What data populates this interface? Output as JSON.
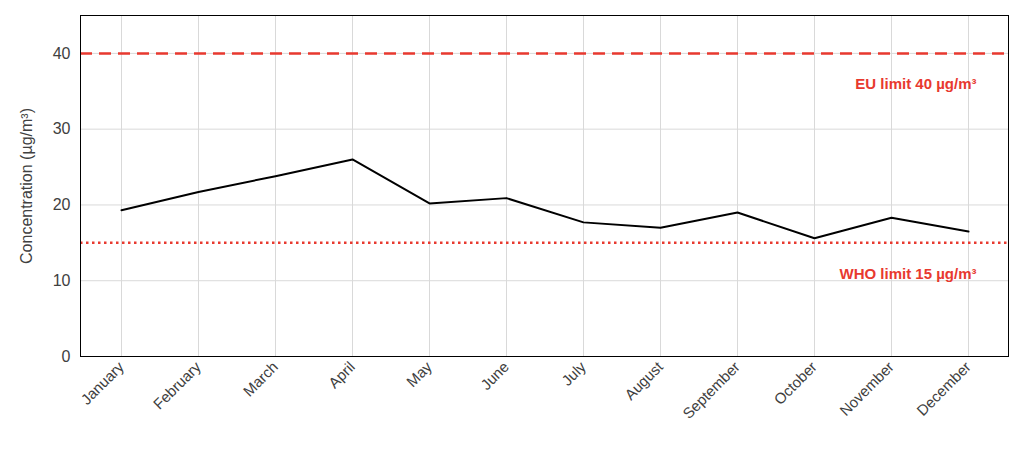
{
  "chart_data": {
    "type": "line",
    "y_label": "Concentration (µg/m³)",
    "categories": [
      "January",
      "February",
      "March",
      "April",
      "May",
      "June",
      "July",
      "August",
      "September",
      "October",
      "November",
      "December"
    ],
    "values": [
      19.3,
      21.7,
      23.8,
      26.0,
      20.2,
      20.9,
      17.7,
      17.0,
      19.0,
      15.6,
      18.3,
      16.5
    ],
    "color": "#000000",
    "ylim": [
      0,
      45
    ],
    "yticks": [
      0,
      10,
      20,
      30,
      40
    ],
    "grid": true,
    "reference_lines": [
      {
        "y": 40,
        "label": "EU limit 40 µg/m³",
        "line_style": "dashed",
        "color": "#e8392f"
      },
      {
        "y": 15,
        "label": "WHO limit 15 µg/m³",
        "line_style": "dotted",
        "color": "#e8392f"
      }
    ]
  }
}
